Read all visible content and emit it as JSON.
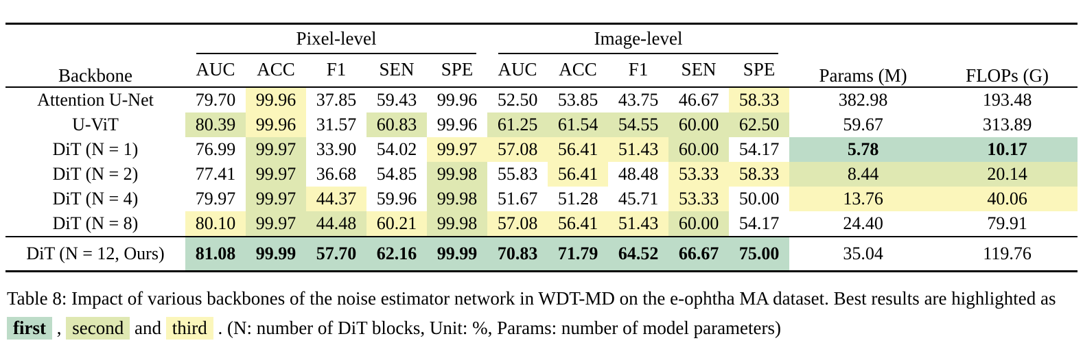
{
  "colors": {
    "first": "#bddcc8",
    "second": "#dfe8b2",
    "third": "#fbf6bb"
  },
  "table": {
    "header": {
      "backbone": "Backbone",
      "group_pixel": "Pixel-level",
      "group_image": "Image-level",
      "metrics": [
        "AUC",
        "ACC",
        "F1",
        "SEN",
        "SPE"
      ],
      "params": "Params (M)",
      "flops": "FLOPs (G)"
    },
    "rows": [
      {
        "backbone": "Attention U-Net",
        "ours": false,
        "cells": [
          {
            "v": "79.70",
            "r": ""
          },
          {
            "v": "99.96",
            "r": "third"
          },
          {
            "v": "37.85",
            "r": ""
          },
          {
            "v": "59.43",
            "r": ""
          },
          {
            "v": "99.96",
            "r": ""
          },
          {
            "v": "52.50",
            "r": ""
          },
          {
            "v": "53.85",
            "r": ""
          },
          {
            "v": "43.75",
            "r": ""
          },
          {
            "v": "46.67",
            "r": ""
          },
          {
            "v": "58.33",
            "r": "third"
          },
          {
            "v": "382.98",
            "r": ""
          },
          {
            "v": "193.48",
            "r": ""
          }
        ]
      },
      {
        "backbone": "U-ViT",
        "ours": false,
        "cells": [
          {
            "v": "80.39",
            "r": "second"
          },
          {
            "v": "99.96",
            "r": "third"
          },
          {
            "v": "31.57",
            "r": ""
          },
          {
            "v": "60.83",
            "r": "second"
          },
          {
            "v": "99.96",
            "r": ""
          },
          {
            "v": "61.25",
            "r": "second"
          },
          {
            "v": "61.54",
            "r": "second"
          },
          {
            "v": "54.55",
            "r": "second"
          },
          {
            "v": "60.00",
            "r": "second"
          },
          {
            "v": "62.50",
            "r": "second"
          },
          {
            "v": "59.67",
            "r": ""
          },
          {
            "v": "313.89",
            "r": ""
          }
        ]
      },
      {
        "backbone": "DiT (N = 1)",
        "ours": false,
        "cells": [
          {
            "v": "76.99",
            "r": ""
          },
          {
            "v": "99.97",
            "r": "second"
          },
          {
            "v": "33.90",
            "r": ""
          },
          {
            "v": "54.02",
            "r": ""
          },
          {
            "v": "99.97",
            "r": "third"
          },
          {
            "v": "57.08",
            "r": "third"
          },
          {
            "v": "56.41",
            "r": "third"
          },
          {
            "v": "51.43",
            "r": "third"
          },
          {
            "v": "60.00",
            "r": "second"
          },
          {
            "v": "54.17",
            "r": ""
          },
          {
            "v": "5.78",
            "r": "first"
          },
          {
            "v": "10.17",
            "r": "first"
          }
        ]
      },
      {
        "backbone": "DiT (N = 2)",
        "ours": false,
        "cells": [
          {
            "v": "77.41",
            "r": ""
          },
          {
            "v": "99.97",
            "r": "second"
          },
          {
            "v": "36.68",
            "r": ""
          },
          {
            "v": "54.85",
            "r": ""
          },
          {
            "v": "99.98",
            "r": "second"
          },
          {
            "v": "55.83",
            "r": ""
          },
          {
            "v": "56.41",
            "r": "third"
          },
          {
            "v": "48.48",
            "r": ""
          },
          {
            "v": "53.33",
            "r": "third"
          },
          {
            "v": "58.33",
            "r": "third"
          },
          {
            "v": "8.44",
            "r": "second"
          },
          {
            "v": "20.14",
            "r": "second"
          }
        ]
      },
      {
        "backbone": "DiT (N = 4)",
        "ours": false,
        "cells": [
          {
            "v": "79.97",
            "r": ""
          },
          {
            "v": "99.97",
            "r": "second"
          },
          {
            "v": "44.37",
            "r": "third"
          },
          {
            "v": "59.96",
            "r": ""
          },
          {
            "v": "99.98",
            "r": "second"
          },
          {
            "v": "51.67",
            "r": ""
          },
          {
            "v": "51.28",
            "r": ""
          },
          {
            "v": "45.71",
            "r": ""
          },
          {
            "v": "53.33",
            "r": "third"
          },
          {
            "v": "50.00",
            "r": ""
          },
          {
            "v": "13.76",
            "r": "third"
          },
          {
            "v": "40.06",
            "r": "third"
          }
        ]
      },
      {
        "backbone": "DiT (N = 8)",
        "ours": false,
        "cells": [
          {
            "v": "80.10",
            "r": "third"
          },
          {
            "v": "99.97",
            "r": "second"
          },
          {
            "v": "44.48",
            "r": "second"
          },
          {
            "v": "60.21",
            "r": "third"
          },
          {
            "v": "99.98",
            "r": "second"
          },
          {
            "v": "57.08",
            "r": "third"
          },
          {
            "v": "56.41",
            "r": "third"
          },
          {
            "v": "51.43",
            "r": "third"
          },
          {
            "v": "60.00",
            "r": "second"
          },
          {
            "v": "54.17",
            "r": ""
          },
          {
            "v": "24.40",
            "r": ""
          },
          {
            "v": "79.91",
            "r": ""
          }
        ]
      },
      {
        "backbone": "DiT (N = 12, Ours)",
        "ours": true,
        "cells": [
          {
            "v": "81.08",
            "r": "first"
          },
          {
            "v": "99.99",
            "r": "first"
          },
          {
            "v": "57.70",
            "r": "first"
          },
          {
            "v": "62.16",
            "r": "first"
          },
          {
            "v": "99.99",
            "r": "first"
          },
          {
            "v": "70.83",
            "r": "first"
          },
          {
            "v": "71.79",
            "r": "first"
          },
          {
            "v": "64.52",
            "r": "first"
          },
          {
            "v": "66.67",
            "r": "first"
          },
          {
            "v": "75.00",
            "r": "first"
          },
          {
            "v": "35.04",
            "r": ""
          },
          {
            "v": "119.76",
            "r": ""
          }
        ]
      }
    ]
  },
  "caption": {
    "parts": [
      {
        "t": "Table 8: Impact of various backbones of the noise estimator network in WDT-MD on the e-ophtha MA dataset. Best results are highlighted as ",
        "hl": ""
      },
      {
        "t": "first",
        "hl": "first"
      },
      {
        "t": " , ",
        "hl": ""
      },
      {
        "t": "second",
        "hl": "second"
      },
      {
        "t": " and ",
        "hl": ""
      },
      {
        "t": "third",
        "hl": "third"
      },
      {
        "t": " . (N: number of DiT blocks, Unit: %, Params: number of model parameters)",
        "hl": ""
      }
    ]
  }
}
